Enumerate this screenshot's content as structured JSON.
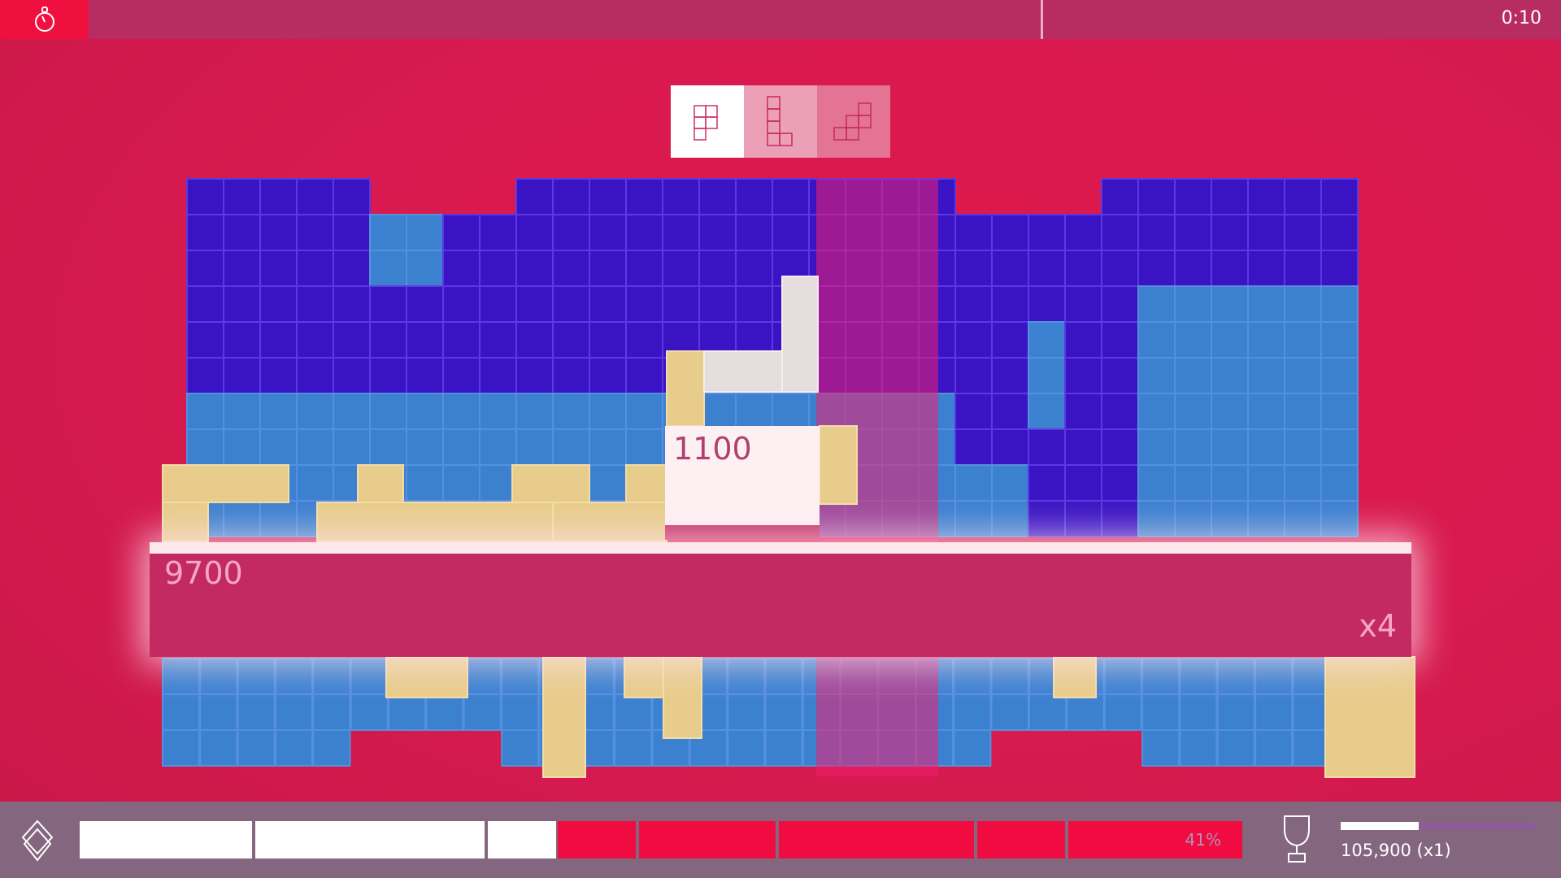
{
  "hud": {
    "timer_icon": "stopwatch-icon",
    "time": "0:10"
  },
  "next_pieces": [
    {
      "icon": "p-piece-icon"
    },
    {
      "icon": "l-piece-icon"
    },
    {
      "icon": "w-piece-icon"
    }
  ],
  "board": {
    "line_score": "9700",
    "multiplier": "x4",
    "piece_score": "1100"
  },
  "progress": {
    "percent_label": "41%",
    "percent": 41,
    "icon": "diamond-icon"
  },
  "best": {
    "icon": "trophy-icon",
    "score": "105,900 (x1)",
    "fill_percent": 40
  },
  "colors": {
    "accent": "#f01040",
    "dark_cell": "#3a14c4",
    "light_cell": "#3c80d0",
    "block": "#e8cc8c",
    "hud": "#84667f"
  }
}
